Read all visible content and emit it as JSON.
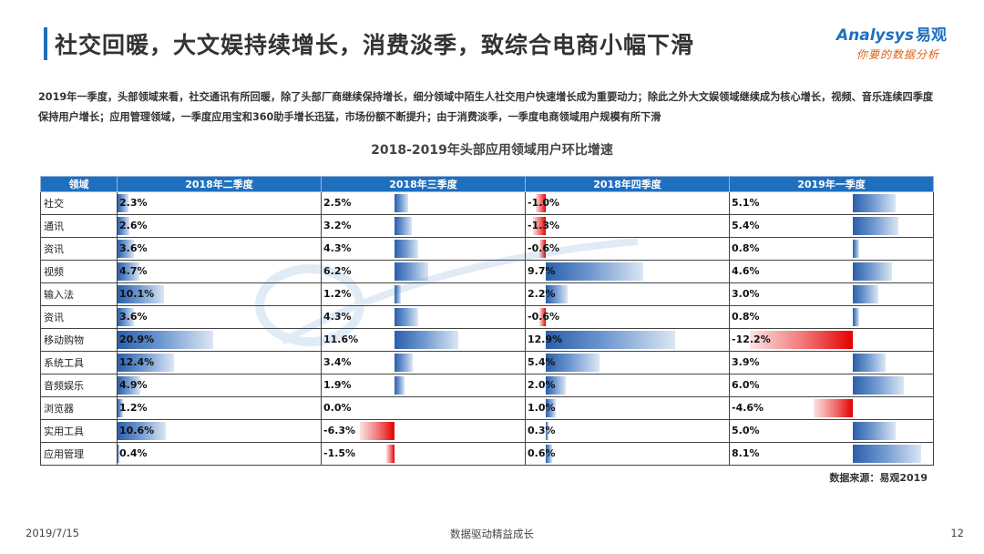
{
  "title": "社交回暖，大文娱持续增长，消费淡季，致综合电商小幅下滑",
  "logo": {
    "brand": "Analysys",
    "brand_cn": "易观",
    "tagline": "你要的数据分析"
  },
  "summary": "2019年一季度，头部领域来看，社交通讯有所回暖，除了头部厂商继续保持增长，细分领域中陌生人社交用户快速增长成为重要动力；除此之外大文娱领域继续成为核心增长，视频、音乐连续四季度保持用户增长；应用管理领域，一季度应用宝和360助手增长迅猛，市场份额不断提升；由于消费淡季，一季度电商领域用户规模有所下滑",
  "table_title": "2018-2019年头部应用领域用户环比增速",
  "columns": [
    "领域",
    "2018年二季度",
    "2018年三季度",
    "2018年四季度",
    "2019年一季度"
  ],
  "rows": [
    {
      "domain": "社交",
      "values": [
        2.3,
        2.5,
        -1.0,
        5.1
      ],
      "labels": [
        "2.3%",
        "2.5%",
        "-1.0%",
        "5.1%"
      ]
    },
    {
      "domain": "通讯",
      "values": [
        2.6,
        3.2,
        -1.3,
        5.4
      ],
      "labels": [
        "2.6%",
        "3.2%",
        "-1.3%",
        "5.4%"
      ]
    },
    {
      "domain": "资讯",
      "values": [
        3.6,
        4.3,
        -0.6,
        0.8
      ],
      "labels": [
        "3.6%",
        "4.3%",
        "-0.6%",
        "0.8%"
      ]
    },
    {
      "domain": "视频",
      "values": [
        4.7,
        6.2,
        9.7,
        4.6
      ],
      "labels": [
        "4.7%",
        "6.2%",
        "9.7%",
        "4.6%"
      ]
    },
    {
      "domain": "输入法",
      "values": [
        10.1,
        1.2,
        2.2,
        3.0
      ],
      "labels": [
        "10.1%",
        "1.2%",
        "2.2%",
        "3.0%"
      ]
    },
    {
      "domain": "资讯",
      "values": [
        3.6,
        4.3,
        -0.6,
        0.8
      ],
      "labels": [
        "3.6%",
        "4.3%",
        "-0.6%",
        "0.8%"
      ]
    },
    {
      "domain": "移动购物",
      "values": [
        20.9,
        11.6,
        12.9,
        -12.2
      ],
      "labels": [
        "20.9%",
        "11.6%",
        "12.9%",
        "-12.2%"
      ]
    },
    {
      "domain": "系统工具",
      "values": [
        12.4,
        3.4,
        5.4,
        3.9
      ],
      "labels": [
        "12.4%",
        "3.4%",
        "5.4%",
        "3.9%"
      ]
    },
    {
      "domain": "音频娱乐",
      "values": [
        4.9,
        1.9,
        2.0,
        6.0
      ],
      "labels": [
        "4.9%",
        "1.9%",
        "2.0%",
        "6.0%"
      ]
    },
    {
      "domain": "浏览器",
      "values": [
        1.2,
        0.0,
        1.0,
        -4.6
      ],
      "labels": [
        "1.2%",
        "0.0%",
        "1.0%",
        "-4.6%"
      ]
    },
    {
      "domain": "实用工具",
      "values": [
        10.6,
        -6.3,
        0.3,
        5.0
      ],
      "labels": [
        "10.6%",
        "-6.3%",
        "0.3%",
        "5.0%"
      ]
    },
    {
      "domain": "应用管理",
      "values": [
        0.4,
        -1.5,
        0.6,
        8.1
      ],
      "labels": [
        "0.4%",
        "-1.5%",
        "0.6%",
        "8.1%"
      ]
    }
  ],
  "colors": {
    "header": "#1f6fbf",
    "positive_bar": "#2b5faa",
    "negative_bar": "#e30000"
  },
  "source": "数据来源：易观2019",
  "footer": {
    "date": "2019/7/15",
    "slogan": "数据驱动精益成长",
    "page": "12"
  }
}
